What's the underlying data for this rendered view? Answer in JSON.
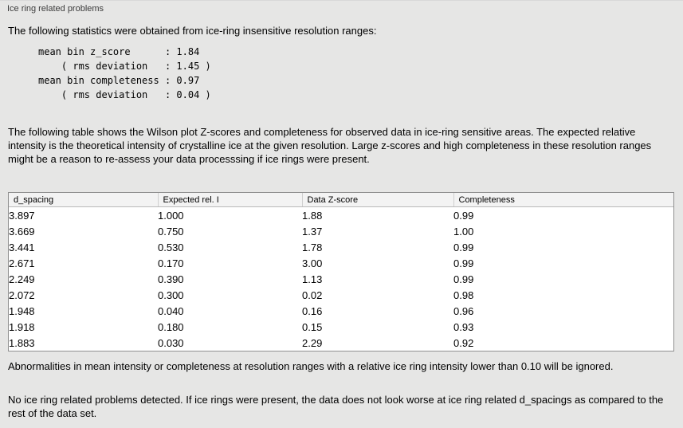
{
  "panel": {
    "title": "Ice ring related problems"
  },
  "intro": "The following statistics were obtained from ice-ring insensitive resolution ranges:",
  "stats_block": "mean bin z_score      : 1.84\n    ( rms deviation   : 1.45 )\nmean bin completeness : 0.97\n    ( rms deviation   : 0.04 )",
  "table_intro": "The following table shows the Wilson plot Z-scores and completeness for observed data in ice-ring sensitive areas. The expected relative intensity is the theoretical intensity of crystalline ice at the given resolution. Large z-scores and high completeness in these resolution ranges might be a reason to re-assess your data processsing if ice rings were present.",
  "table": {
    "headers": [
      "d_spacing",
      "Expected rel. I",
      "Data Z-score",
      "Completeness"
    ],
    "rows": [
      [
        "3.897",
        "1.000",
        "1.88",
        "0.99"
      ],
      [
        "3.669",
        "0.750",
        "1.37",
        "1.00"
      ],
      [
        "3.441",
        "0.530",
        "1.78",
        "0.99"
      ],
      [
        "2.671",
        "0.170",
        "3.00",
        "0.99"
      ],
      [
        "2.249",
        "0.390",
        "1.13",
        "0.99"
      ],
      [
        "2.072",
        "0.300",
        "0.02",
        "0.98"
      ],
      [
        "1.948",
        "0.040",
        "0.16",
        "0.96"
      ],
      [
        "1.918",
        "0.180",
        "0.15",
        "0.93"
      ],
      [
        "1.883",
        "0.030",
        "2.29",
        "0.92"
      ]
    ]
  },
  "note_ignore": "Abnormalities in mean intensity or completeness at resolution ranges with a relative ice ring intensity lower than 0.10 will be ignored.",
  "conclusion": "No ice ring related problems detected. If ice rings were present, the data does not look worse at ice ring related d_spacings as compared to the rest of the data set."
}
